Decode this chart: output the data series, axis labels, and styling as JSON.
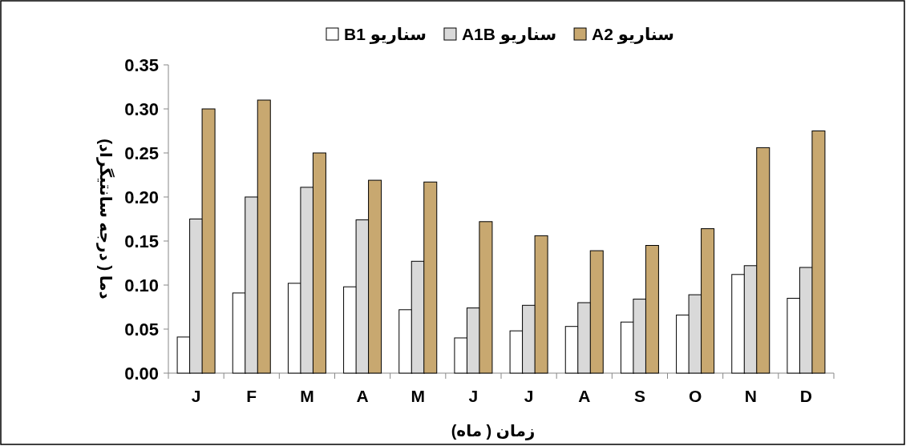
{
  "chart_data": {
    "type": "bar",
    "categories": [
      "J",
      "F",
      "M",
      "A",
      "M",
      "J",
      "J",
      "A",
      "S",
      "O",
      "N",
      "D"
    ],
    "ylabel": "دما ( درجه سانتیگراد)",
    "xlabel": "زمان ( ماه)",
    "ylim": [
      0,
      0.35
    ],
    "yticks": [
      {
        "value": 0,
        "label": "0.00"
      },
      {
        "value": 0.05,
        "label": "0.05"
      },
      {
        "value": 0.1,
        "label": "0.10"
      },
      {
        "value": 0.15,
        "label": "0.15"
      },
      {
        "value": 0.2,
        "label": "0.20"
      },
      {
        "value": 0.25,
        "label": "0.25"
      },
      {
        "value": 0.3,
        "label": "0.30"
      },
      {
        "value": 0.35,
        "label": "0.35"
      }
    ],
    "legend": "top",
    "series": [
      {
        "name": "سناریو B1",
        "color": "#ffffff",
        "values": [
          0.041,
          0.091,
          0.102,
          0.098,
          0.072,
          0.04,
          0.048,
          0.053,
          0.058,
          0.066,
          0.112,
          0.085
        ]
      },
      {
        "name": "سناریو A1B",
        "color": "#d9d9d9",
        "values": [
          0.175,
          0.2,
          0.211,
          0.174,
          0.127,
          0.074,
          0.077,
          0.08,
          0.084,
          0.089,
          0.122,
          0.12
        ]
      },
      {
        "name": "سناریو A2",
        "color": "#c8a870",
        "values": [
          0.3,
          0.31,
          0.25,
          0.219,
          0.217,
          0.172,
          0.156,
          0.139,
          0.145,
          0.164,
          0.256,
          0.275
        ]
      }
    ]
  }
}
